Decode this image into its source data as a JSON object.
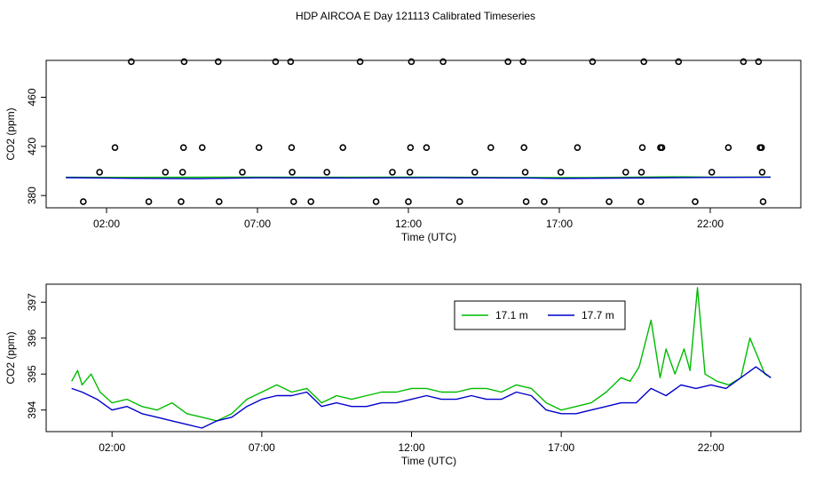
{
  "title": "HDP AIRCOA E  Day 121113  Calibrated Timeseries",
  "colors": {
    "green": "#00bb00",
    "blue": "#0000cc",
    "axis": "#000000"
  },
  "chart_data": [
    {
      "type": "scatter",
      "xlabel": "Time (UTC)",
      "ylabel": "CO2 (ppm)",
      "xlim": [
        0,
        25
      ],
      "ylim": [
        370,
        490
      ],
      "xticks": [
        2,
        7,
        12,
        17,
        22
      ],
      "xtick_labels": [
        "02:00",
        "07:00",
        "12:00",
        "17:00",
        "22:00"
      ],
      "yticks": [
        380,
        420,
        460
      ],
      "ytick_labels": [
        "380",
        "420",
        "460"
      ],
      "series": [
        {
          "color": "#00bb00",
          "style": "line",
          "values": [
            [
              0.65,
              394.9
            ],
            [
              3,
              394.8
            ],
            [
              6,
              395
            ],
            [
              9,
              394.9
            ],
            [
              12,
              395.0
            ],
            [
              15,
              394.7
            ],
            [
              18,
              394.6
            ],
            [
              20,
              395.1
            ],
            [
              21.1,
              395.2
            ],
            [
              22,
              395.0
            ],
            [
              24.0,
              395.1
            ]
          ]
        },
        {
          "color": "#0000cc",
          "style": "line",
          "values": [
            [
              0.65,
              394.6
            ],
            [
              3,
              394.0
            ],
            [
              5,
              393.7
            ],
            [
              7,
              394.4
            ],
            [
              10,
              394.3
            ],
            [
              13,
              394.5
            ],
            [
              16,
              394.3
            ],
            [
              17,
              393.9
            ],
            [
              19,
              394.2
            ],
            [
              22,
              394.7
            ],
            [
              24.0,
              394.9
            ]
          ]
        },
        {
          "style": "points",
          "marker": "open-circle",
          "values": [
            [
              1.23,
              375
            ],
            [
              1.77,
              399
            ],
            [
              2.28,
              419
            ],
            [
              2.82,
              489
            ],
            [
              3.4,
              375
            ],
            [
              3.95,
              399
            ],
            [
              4.47,
              375
            ],
            [
              4.52,
              399
            ],
            [
              4.55,
              419
            ],
            [
              4.57,
              489
            ],
            [
              5.17,
              419
            ],
            [
              5.7,
              489
            ],
            [
              5.73,
              375
            ],
            [
              6.5,
              399
            ],
            [
              7.05,
              419
            ],
            [
              7.6,
              489
            ],
            [
              8.1,
              489
            ],
            [
              8.13,
              419
            ],
            [
              8.15,
              399
            ],
            [
              8.2,
              375
            ],
            [
              8.77,
              375
            ],
            [
              9.3,
              399
            ],
            [
              9.83,
              419
            ],
            [
              10.4,
              489
            ],
            [
              10.93,
              375
            ],
            [
              11.47,
              399
            ],
            [
              12.0,
              375
            ],
            [
              12.05,
              399
            ],
            [
              12.07,
              419
            ],
            [
              12.1,
              489
            ],
            [
              12.6,
              419
            ],
            [
              13.15,
              489
            ],
            [
              13.7,
              375
            ],
            [
              14.2,
              399
            ],
            [
              14.73,
              419
            ],
            [
              15.3,
              489
            ],
            [
              15.8,
              489
            ],
            [
              15.83,
              419
            ],
            [
              15.87,
              399
            ],
            [
              15.9,
              375
            ],
            [
              16.5,
              375
            ],
            [
              17.05,
              399
            ],
            [
              17.6,
              419
            ],
            [
              18.1,
              489
            ],
            [
              18.65,
              375
            ],
            [
              19.2,
              399
            ],
            [
              19.7,
              375
            ],
            [
              19.72,
              399
            ],
            [
              19.75,
              419
            ],
            [
              19.8,
              489
            ],
            [
              20.35,
              419
            ],
            [
              20.4,
              419
            ],
            [
              20.95,
              489
            ],
            [
              21.5,
              375
            ],
            [
              22.05,
              399
            ],
            [
              22.6,
              419
            ],
            [
              23.1,
              489
            ],
            [
              23.6,
              489
            ],
            [
              23.65,
              419
            ],
            [
              23.7,
              419
            ],
            [
              23.72,
              399
            ],
            [
              23.75,
              375
            ]
          ]
        }
      ]
    },
    {
      "type": "line",
      "xlabel": "Time (UTC)",
      "ylabel": "CO2 (ppm)",
      "xlim": [
        -0.2,
        25
      ],
      "ylim": [
        393.4,
        397.5
      ],
      "xticks": [
        2,
        7,
        12,
        17,
        22
      ],
      "xtick_labels": [
        "02:00",
        "07:00",
        "12:00",
        "17:00",
        "22:00"
      ],
      "yticks": [
        394,
        395,
        396,
        397
      ],
      "ytick_labels": [
        "394",
        "395",
        "396",
        "397"
      ],
      "legend": {
        "position": "top-right",
        "entries": [
          "17.1 m",
          "17.7 m"
        ]
      },
      "series": [
        {
          "name": "17.1 m",
          "color": "#00bb00",
          "values": [
            [
              0.65,
              394.8
            ],
            [
              0.85,
              395.1
            ],
            [
              1.0,
              394.7
            ],
            [
              1.3,
              395.0
            ],
            [
              1.6,
              394.5
            ],
            [
              2.0,
              394.2
            ],
            [
              2.5,
              394.3
            ],
            [
              3.0,
              394.1
            ],
            [
              3.5,
              394.0
            ],
            [
              4.0,
              394.2
            ],
            [
              4.5,
              393.9
            ],
            [
              5.0,
              393.8
            ],
            [
              5.5,
              393.7
            ],
            [
              6.0,
              393.9
            ],
            [
              6.5,
              394.3
            ],
            [
              7.0,
              394.5
            ],
            [
              7.5,
              394.7
            ],
            [
              8.0,
              394.5
            ],
            [
              8.5,
              394.6
            ],
            [
              9.0,
              394.2
            ],
            [
              9.5,
              394.4
            ],
            [
              10.0,
              394.3
            ],
            [
              10.5,
              394.4
            ],
            [
              11.0,
              394.5
            ],
            [
              11.5,
              394.5
            ],
            [
              12.0,
              394.6
            ],
            [
              12.5,
              394.6
            ],
            [
              13.0,
              394.5
            ],
            [
              13.5,
              394.5
            ],
            [
              14.0,
              394.6
            ],
            [
              14.5,
              394.6
            ],
            [
              15.0,
              394.5
            ],
            [
              15.5,
              394.7
            ],
            [
              16.0,
              394.6
            ],
            [
              16.5,
              394.2
            ],
            [
              17.0,
              394.0
            ],
            [
              17.5,
              394.1
            ],
            [
              18.0,
              394.2
            ],
            [
              18.5,
              394.5
            ],
            [
              19.0,
              394.9
            ],
            [
              19.3,
              394.8
            ],
            [
              19.6,
              395.2
            ],
            [
              20.0,
              396.5
            ],
            [
              20.3,
              394.9
            ],
            [
              20.5,
              395.7
            ],
            [
              20.8,
              395.0
            ],
            [
              21.1,
              395.7
            ],
            [
              21.3,
              395.1
            ],
            [
              21.55,
              397.4
            ],
            [
              21.8,
              395.0
            ],
            [
              22.2,
              394.8
            ],
            [
              22.6,
              394.7
            ],
            [
              23.0,
              394.9
            ],
            [
              23.3,
              396.0
            ],
            [
              23.6,
              395.4
            ],
            [
              23.8,
              395.0
            ],
            [
              24.0,
              394.9
            ]
          ]
        },
        {
          "name": "17.7 m",
          "color": "#0000cc",
          "values": [
            [
              0.65,
              394.6
            ],
            [
              1.0,
              394.5
            ],
            [
              1.5,
              394.3
            ],
            [
              2.0,
              394.0
            ],
            [
              2.5,
              394.1
            ],
            [
              3.0,
              393.9
            ],
            [
              3.5,
              393.8
            ],
            [
              4.0,
              393.7
            ],
            [
              4.5,
              393.6
            ],
            [
              5.0,
              393.5
            ],
            [
              5.5,
              393.7
            ],
            [
              6.0,
              393.8
            ],
            [
              6.5,
              394.1
            ],
            [
              7.0,
              394.3
            ],
            [
              7.5,
              394.4
            ],
            [
              8.0,
              394.4
            ],
            [
              8.5,
              394.5
            ],
            [
              9.0,
              394.1
            ],
            [
              9.5,
              394.2
            ],
            [
              10.0,
              394.1
            ],
            [
              10.5,
              394.1
            ],
            [
              11.0,
              394.2
            ],
            [
              11.5,
              394.2
            ],
            [
              12.0,
              394.3
            ],
            [
              12.5,
              394.4
            ],
            [
              13.0,
              394.3
            ],
            [
              13.5,
              394.3
            ],
            [
              14.0,
              394.4
            ],
            [
              14.5,
              394.3
            ],
            [
              15.0,
              394.3
            ],
            [
              15.5,
              394.5
            ],
            [
              16.0,
              394.4
            ],
            [
              16.5,
              394.0
            ],
            [
              17.0,
              393.9
            ],
            [
              17.5,
              393.9
            ],
            [
              18.0,
              394.0
            ],
            [
              18.5,
              394.1
            ],
            [
              19.0,
              394.2
            ],
            [
              19.5,
              394.2
            ],
            [
              20.0,
              394.6
            ],
            [
              20.5,
              394.4
            ],
            [
              21.0,
              394.7
            ],
            [
              21.5,
              394.6
            ],
            [
              22.0,
              394.7
            ],
            [
              22.5,
              394.6
            ],
            [
              23.0,
              394.9
            ],
            [
              23.5,
              395.2
            ],
            [
              24.0,
              394.9
            ]
          ]
        }
      ]
    }
  ]
}
